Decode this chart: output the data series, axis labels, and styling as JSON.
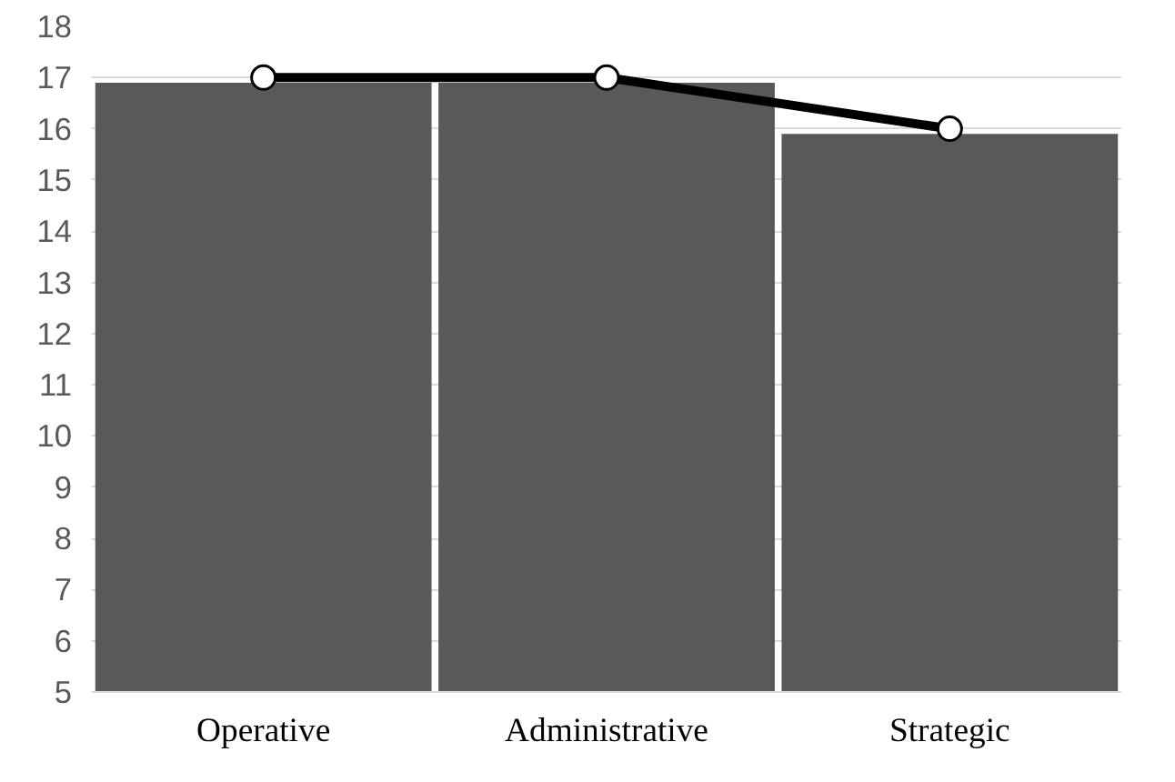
{
  "chart_data": {
    "type": "bar",
    "categories": [
      "Operative",
      "Administrative",
      "Strategic"
    ],
    "series": [
      {
        "color": "#595959",
        "values": [
          16.9,
          16.9,
          15.9
        ]
      },
      {
        "type": "line",
        "color": "#000000",
        "values": [
          17,
          17,
          16
        ],
        "marker": "circle"
      }
    ],
    "ylim": [
      5,
      18
    ],
    "yticks": [
      5,
      6,
      7,
      8,
      9,
      10,
      11,
      12,
      13,
      14,
      15,
      16,
      17,
      18
    ],
    "grid": "y"
  }
}
